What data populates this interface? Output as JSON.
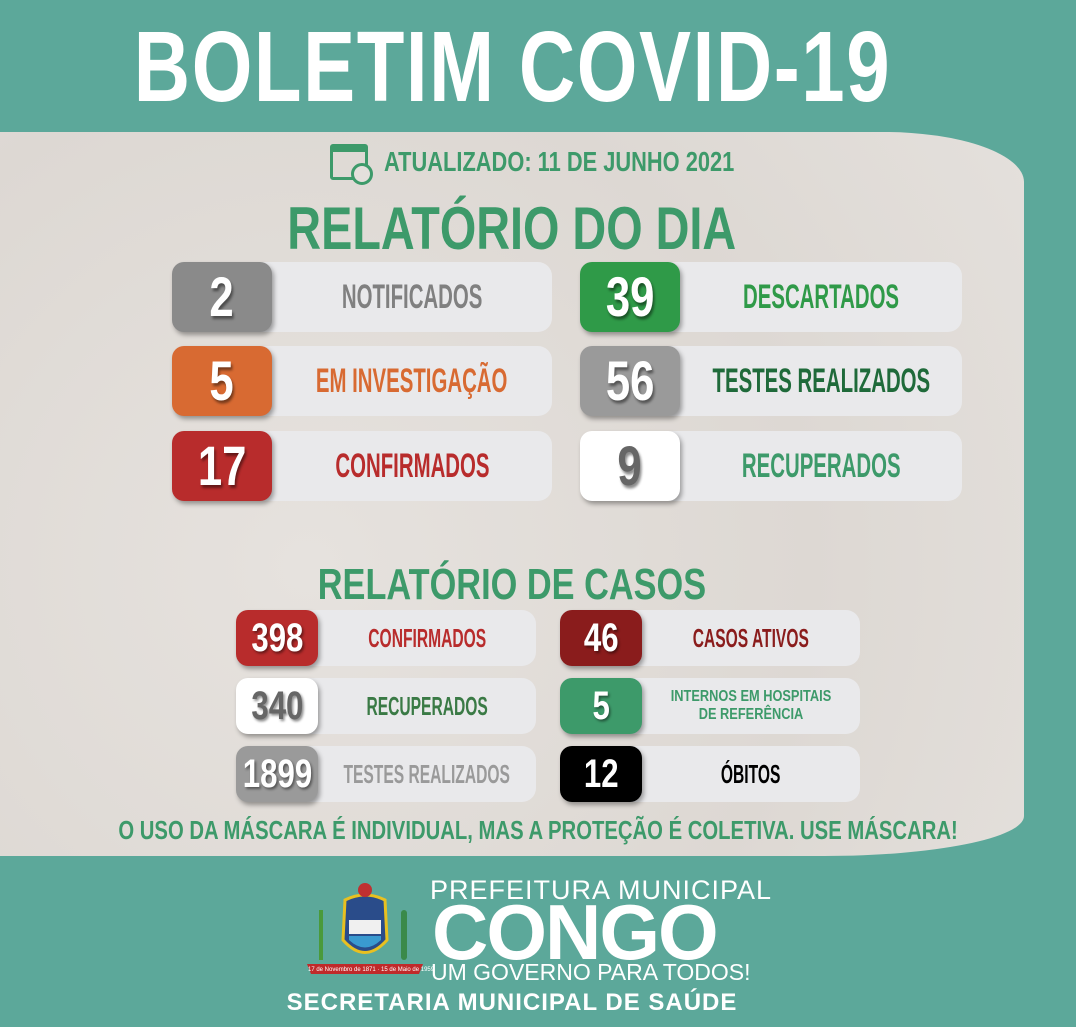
{
  "header": {
    "title": "BOLETIM COVID-19"
  },
  "updated": {
    "icon": "calendar-clock-icon",
    "text": "ATUALIZADO: 11 DE JUNHO 2021"
  },
  "daily": {
    "title": "RELATÓRIO DO DIA",
    "items": [
      {
        "value": "2",
        "label": "NOTIFICADOS",
        "box": "#8a8a8a",
        "color": "#808080"
      },
      {
        "value": "39",
        "label": "DESCARTADOS",
        "box": "#2f9a48",
        "color": "#2f9a48"
      },
      {
        "value": "5",
        "label": "EM INVESTIGAÇÃO",
        "box": "#d86a32",
        "color": "#d86a32"
      },
      {
        "value": "56",
        "label": "TESTES REALIZADOS",
        "box": "#9a9a9a",
        "color": "#1f6a3a"
      },
      {
        "value": "17",
        "label": "CONFIRMADOS",
        "box": "#b82c2c",
        "color": "#b82c2c"
      },
      {
        "value": "9",
        "label": "RECUPERADOS",
        "box": "#ffffff",
        "color": "#3d9a6a"
      }
    ]
  },
  "cases": {
    "title": "RELATÓRIO DE CASOS",
    "items": [
      {
        "value": "398",
        "label": "CONFIRMADOS",
        "box": "#b82c2c",
        "color": "#b82c2c"
      },
      {
        "value": "46",
        "label": "CASOS ATIVOS",
        "box": "#8a1c1c",
        "color": "#8a1c1c"
      },
      {
        "value": "340",
        "label": "RECUPERADOS",
        "box": "#ffffff",
        "color": "#3a7a45"
      },
      {
        "value": "5",
        "label": "INTERNOS EM HOSPITAIS DE REFERÊNCIA",
        "box": "#3d9a6a",
        "color": "#3d9a6a"
      },
      {
        "value": "1899",
        "label": "TESTES REALIZADOS",
        "box": "#9a9a9a",
        "color": "#9a9a9a"
      },
      {
        "value": "12",
        "label": "ÓBITOS",
        "box": "#000000",
        "color": "#000000"
      }
    ]
  },
  "slogan": "O USO DA MÁSCARA É INDIVIDUAL, MAS A PROTEÇÃO É COLETIVA. USE MÁSCARA!",
  "footer": {
    "prefeitura": "PREFEITURA MUNICIPAL",
    "city": "CONGO",
    "motto": "UM GOVERNO PARA TODOS!",
    "secretaria": "SECRETARIA MUNICIPAL DE SAÚDE",
    "crest_text": "17 de Novembro de 1871 · 15 de Maio de 1959"
  },
  "colors": {
    "teal": "#5ca89a",
    "green": "#3d9a6a"
  }
}
